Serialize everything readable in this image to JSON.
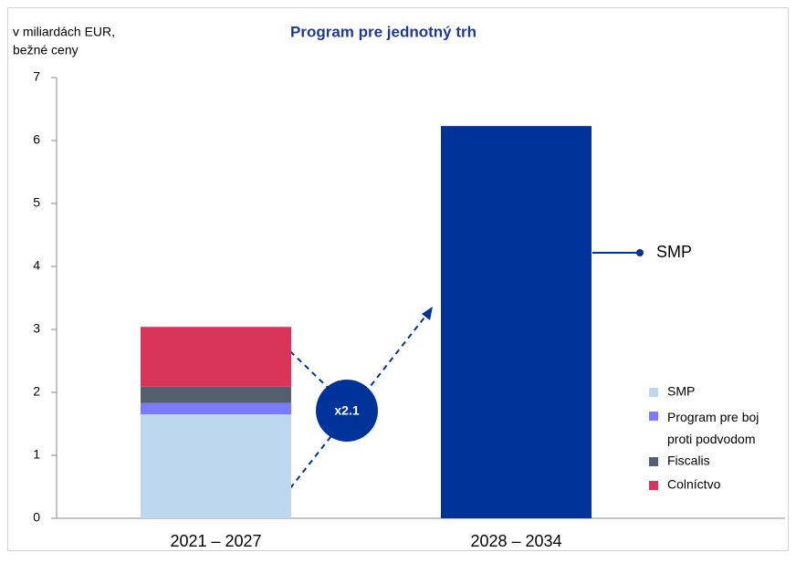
{
  "chart_data": {
    "type": "stacked_bar",
    "title": "Program pre jednotný trh",
    "ylabel": [
      "v miliardách EUR,",
      "bežné ceny"
    ],
    "categories": [
      "2021 – 2027",
      "2028 – 2034"
    ],
    "series": [
      {
        "name": "SMP",
        "color": "#bdd7ee",
        "colors": [
          "#bdd7ee",
          "#003399"
        ],
        "values": [
          1.65,
          6.23
        ]
      },
      {
        "name": "Program pre boj proti podvodom",
        "color": "#7b7bff",
        "values": [
          0.18,
          null
        ]
      },
      {
        "name": "Fiscalis",
        "color": "#545f70",
        "values": [
          0.26,
          null
        ]
      },
      {
        "name": "Colníctvo",
        "color": "#d9345a",
        "values": [
          0.95,
          null
        ]
      }
    ],
    "annotation": "x2.1",
    "ylim": [
      0,
      7
    ],
    "yticks": [
      0,
      1,
      2,
      3,
      4,
      5,
      6,
      7
    ]
  }
}
